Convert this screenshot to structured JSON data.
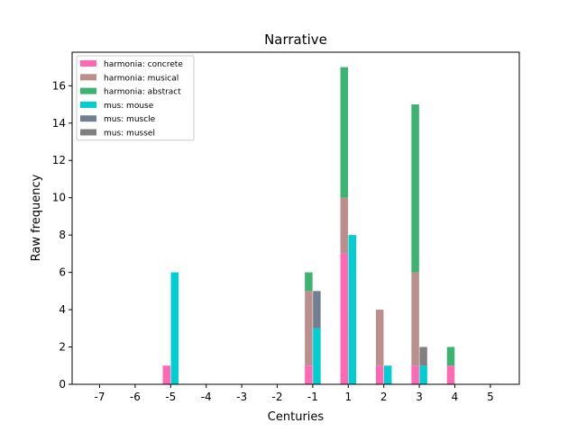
{
  "chart_data": {
    "type": "bar",
    "title": "Narrative",
    "xlabel": "Centuries",
    "ylabel": "Raw frequency",
    "categories": [
      "-7",
      "-6",
      "-5",
      "-4",
      "-3",
      "-2",
      "-1",
      "1",
      "2",
      "3",
      "4",
      "5"
    ],
    "ylim": [
      0,
      17.8
    ],
    "yticks": [
      0,
      2,
      4,
      6,
      8,
      10,
      12,
      14,
      16
    ],
    "grid": false,
    "legend_position": "top-left",
    "groups": [
      {
        "name": "harmonia",
        "series": [
          {
            "name": "harmonia: concrete",
            "color": "#ff69b4",
            "values": [
              0,
              0,
              1,
              0,
              0,
              0,
              1,
              7,
              1,
              1,
              1,
              0
            ]
          },
          {
            "name": "harmonia: musical",
            "color": "#bc8f8f",
            "values": [
              0,
              0,
              0,
              0,
              0,
              0,
              4,
              3,
              3,
              5,
              0,
              0
            ]
          },
          {
            "name": "harmonia: abstract",
            "color": "#3cb371",
            "values": [
              0,
              0,
              0,
              0,
              0,
              0,
              1,
              7,
              0,
              9,
              1,
              0
            ]
          }
        ]
      },
      {
        "name": "mus",
        "series": [
          {
            "name": "mus: mouse",
            "color": "#00ced1",
            "values": [
              0,
              0,
              6,
              0,
              0,
              0,
              3,
              8,
              1,
              1,
              0,
              0
            ]
          },
          {
            "name": "mus: muscle",
            "color": "#708090",
            "values": [
              0,
              0,
              0,
              0,
              0,
              0,
              2,
              0,
              0,
              0,
              0,
              0
            ]
          },
          {
            "name": "mus: mussel",
            "color": "#808080",
            "values": [
              0,
              0,
              0,
              0,
              0,
              0,
              0,
              0,
              0,
              1,
              0,
              0
            ]
          }
        ]
      }
    ]
  }
}
